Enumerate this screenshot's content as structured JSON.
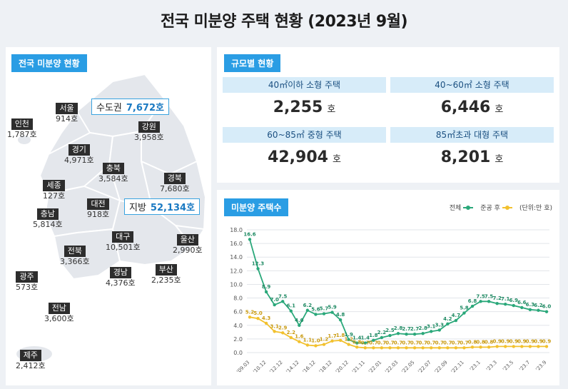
{
  "title": "전국 미분양 주택 현황 (2023년 9월)",
  "map": {
    "tab": "전국 미분양 현황",
    "metro_box": {
      "label": "수도권",
      "value": "7,672호"
    },
    "local_box": {
      "label": "지방",
      "value": "52,134호"
    },
    "regions": [
      {
        "id": "seoul",
        "name": "서울",
        "value": "914호"
      },
      {
        "id": "incheon",
        "name": "인천",
        "value": "1,787호"
      },
      {
        "id": "gangwon",
        "name": "강원",
        "value": "3,958호"
      },
      {
        "id": "gyeonggi",
        "name": "경기",
        "value": "4,971호"
      },
      {
        "id": "chungbuk",
        "name": "충북",
        "value": "3,584호"
      },
      {
        "id": "sejong",
        "name": "세종",
        "value": "127호"
      },
      {
        "id": "gyeongbuk",
        "name": "경북",
        "value": "7,680호"
      },
      {
        "id": "chungnam",
        "name": "충남",
        "value": "5,814호"
      },
      {
        "id": "daejeon",
        "name": "대전",
        "value": "918호"
      },
      {
        "id": "daegu",
        "name": "대구",
        "value": "10,501호"
      },
      {
        "id": "ulsan",
        "name": "울산",
        "value": "2,990호"
      },
      {
        "id": "jeonbuk",
        "name": "전북",
        "value": "3,366호"
      },
      {
        "id": "gwangju",
        "name": "광주",
        "value": "573호"
      },
      {
        "id": "gyeongnam",
        "name": "경남",
        "value": "4,376호"
      },
      {
        "id": "busan",
        "name": "부산",
        "value": "2,235호"
      },
      {
        "id": "jeonnam",
        "name": "전남",
        "value": "3,600호"
      },
      {
        "id": "jeju",
        "name": "제주",
        "value": "2,412호"
      }
    ]
  },
  "size": {
    "tab": "규모별 현황",
    "cells": [
      {
        "header": "40㎡이하 소형 주택",
        "value": "2,255",
        "unit": "호"
      },
      {
        "header": "40~60㎡ 소형 주택",
        "value": "6,446",
        "unit": "호"
      },
      {
        "header": "60~85㎡ 중형 주택",
        "value": "42,904",
        "unit": "호"
      },
      {
        "header": "85㎡초과 대형 주택",
        "value": "8,201",
        "unit": "호"
      }
    ]
  },
  "chart_tab": "미분양 주택수",
  "legend": {
    "total": "전체",
    "completed": "준공 후",
    "unit": "(단위:만 호)"
  },
  "colors": {
    "accent": "#2a9de4",
    "total": "#2aa87a",
    "completed": "#f2c12e"
  },
  "chart_data": {
    "type": "line",
    "ylim": [
      0,
      18
    ],
    "yticks": [
      "0.0",
      "2.0",
      "4.0",
      "6.0",
      "8.0",
      "10.0",
      "12.0",
      "14.0",
      "16.0",
      "18.0"
    ],
    "xticks": [
      "'09.03",
      "'10.12",
      "'12.12",
      "'14.12",
      "'16.12",
      "'18.12",
      "'20.12",
      "'21.11",
      "'22.01",
      "'22.03",
      "'22.05",
      "'22.07",
      "'22.09",
      "'22.11",
      "'23.1",
      "'23.3",
      "'23.5",
      "'23.7",
      "'23.9"
    ],
    "grid": true,
    "legend_position": "top-right",
    "series": [
      {
        "name": "전체",
        "color": "#2aa87a",
        "values": [
          16.6,
          12.3,
          8.9,
          7.0,
          7.5,
          6.1,
          4.0,
          6.2,
          5.6,
          5.7,
          5.9,
          4.8,
          1.9,
          1.4,
          1.4,
          1.8,
          2.2,
          2.5,
          2.8,
          2.7,
          2.7,
          2.8,
          3.1,
          3.3,
          4.2,
          4.7,
          5.8,
          6.8,
          7.5,
          7.5,
          7.2,
          7.1,
          6.9,
          6.6,
          6.3,
          6.2,
          6.0
        ],
        "labels": [
          "16.6",
          "12.3",
          "8.9",
          "7.0",
          "7.5",
          "6.1",
          "4.0",
          "6.2",
          "5.6",
          "5.7",
          "5.9",
          "4.8",
          "1.9",
          "1.4",
          "1.4",
          "1.8",
          "2.2",
          "2.5",
          "2.8",
          "2.7",
          "2.7",
          "2.8",
          "3.1",
          "3.3",
          "4.2",
          "4.7",
          "5.8",
          "6.8",
          "7.5",
          "7.5",
          "7.2",
          "7.1",
          "6.9",
          "6.6",
          "6.3",
          "6.2",
          "6.0"
        ]
      },
      {
        "name": "준공 후",
        "color": "#f2c12e",
        "values": [
          5.2,
          5.0,
          4.3,
          3.1,
          2.9,
          2.2,
          1.6,
          1.1,
          1.0,
          1.2,
          1.7,
          1.8,
          1.2,
          0.8,
          0.7,
          0.7,
          0.7,
          0.7,
          0.7,
          0.7,
          0.7,
          0.7,
          0.7,
          0.7,
          0.7,
          0.7,
          0.7,
          0.8,
          0.8,
          0.8,
          0.9,
          0.9,
          0.9,
          0.9,
          0.9,
          0.9,
          0.9
        ],
        "labels": [
          "5.2",
          "5.0",
          "4.3",
          "3.1",
          "2.9",
          "2.2",
          "1.6",
          "1.1",
          "1.0",
          "1.2",
          "1.7",
          "1.8",
          "1.2",
          "0.8",
          "0.7",
          "0.7",
          "0.7",
          "0.7",
          "0.7",
          "0.7",
          "0.7",
          "0.7",
          "0.7",
          "0.7",
          "0.7",
          "0.7",
          "0.7",
          "0.8",
          "0.8",
          "0.8",
          "0.9",
          "0.9",
          "0.9",
          "0.9",
          "0.9",
          "0.9",
          "0.9"
        ]
      }
    ]
  }
}
